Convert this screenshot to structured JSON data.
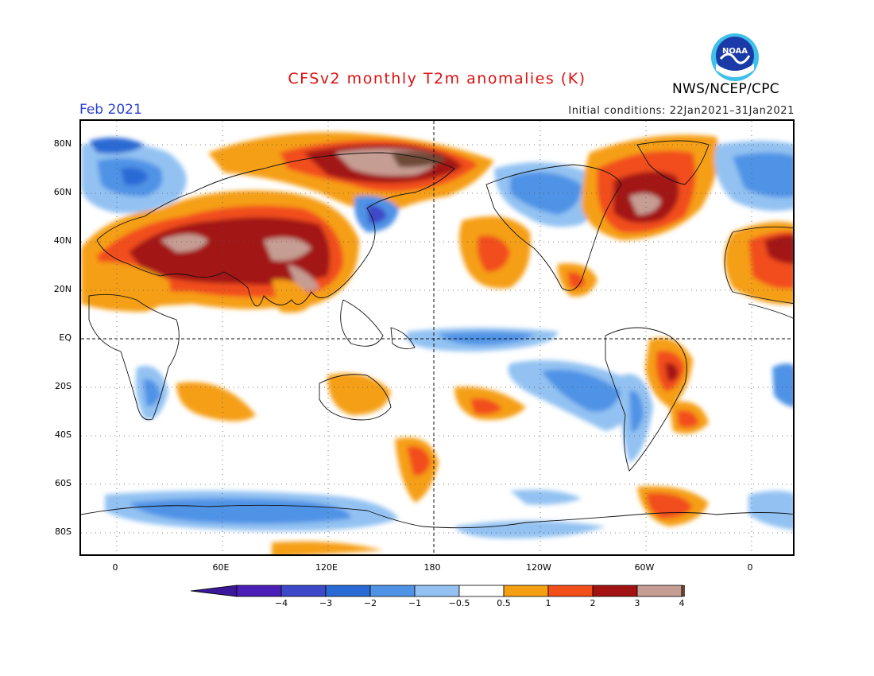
{
  "title": "CFSv2 monthly T2m anomalies (K)",
  "valid_month": "Feb 2021",
  "initial_conditions": "Initial conditions: 22Jan2021–31Jan2021",
  "agency": "NWS/NCEP/CPC",
  "logo": {
    "text": "NOAA",
    "icon": "noaa-logo"
  },
  "map": {
    "projection": "cylindrical-equidistant",
    "lat_ticks": [
      "80N",
      "60N",
      "40N",
      "20N",
      "EQ",
      "20S",
      "40S",
      "60S",
      "80S"
    ],
    "lon_ticks": [
      "0",
      "60E",
      "120E",
      "180",
      "120W",
      "60W",
      "0"
    ],
    "gridlines": "dotted",
    "reference_lines": [
      "equator",
      "dateline"
    ]
  },
  "colorbar": {
    "labels": [
      "−4",
      "−3",
      "−2",
      "−1",
      "−0.5",
      "0.5",
      "1",
      "2",
      "3",
      "4"
    ],
    "colors": [
      "#4a1fb8",
      "#3d48c8",
      "#2a6ad4",
      "#4f93e6",
      "#93c2f2",
      "#ffffff",
      "#f59f12",
      "#f24e1a",
      "#a31212",
      "#c69d93"
    ],
    "end_colors": {
      "low": "#3a1899",
      "high": "#6e4838"
    }
  }
}
